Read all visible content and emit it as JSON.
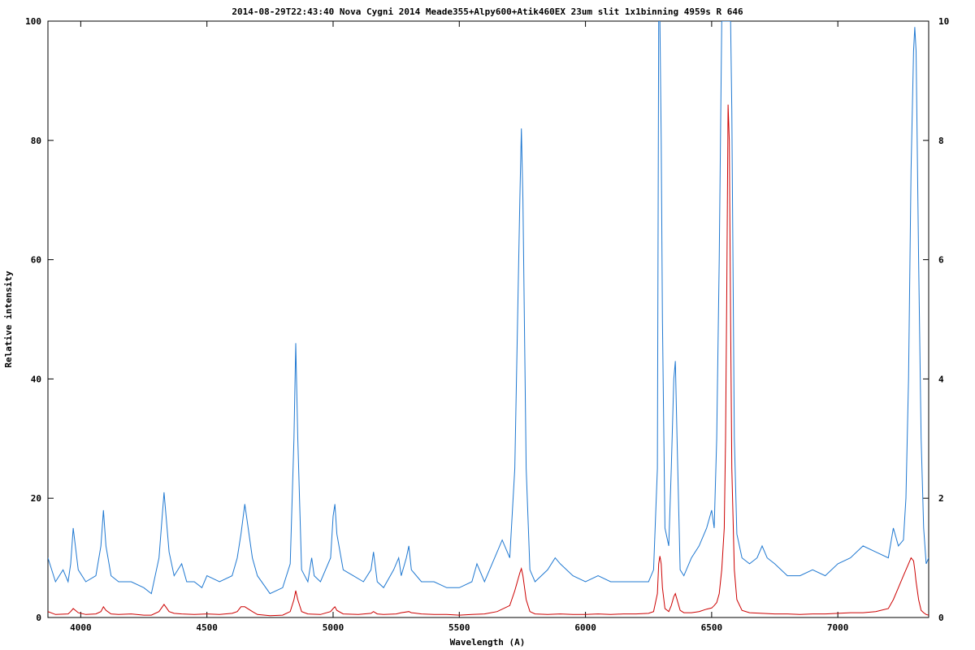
{
  "chart_data": {
    "type": "line",
    "title": "2014-08-29T22:43:40 Nova Cygni 2014 Meade355+Alpy600+Atik460EX 23um slit 1x1binning 4959s R 646",
    "xlabel": "Wavelength (A)",
    "ylabel": "Relative intensity",
    "xlim": [
      3870,
      7360
    ],
    "ylim": [
      0,
      100
    ],
    "y2lim": [
      0,
      10
    ],
    "x_ticks": [
      4000,
      4500,
      5000,
      5500,
      6000,
      6500,
      7000
    ],
    "y_ticks": [
      0,
      20,
      40,
      60,
      80,
      100
    ],
    "y2_ticks": [
      0,
      2,
      4,
      6,
      8,
      10
    ],
    "grid": false,
    "legend": "none",
    "series": [
      {
        "axis": "left",
        "color": "#1f78d1",
        "x": [
          3870,
          3900,
          3930,
          3950,
          3960,
          3970,
          3990,
          4020,
          4060,
          4080,
          4090,
          4100,
          4120,
          4150,
          4200,
          4250,
          4280,
          4310,
          4330,
          4350,
          4370,
          4400,
          4420,
          4450,
          4480,
          4500,
          4550,
          4600,
          4620,
          4635,
          4650,
          4680,
          4700,
          4750,
          4800,
          4830,
          4845,
          4852,
          4860,
          4875,
          4900,
          4915,
          4925,
          4950,
          4990,
          5000,
          5007,
          5015,
          5040,
          5080,
          5120,
          5150,
          5160,
          5175,
          5200,
          5240,
          5260,
          5270,
          5290,
          5300,
          5310,
          5350,
          5400,
          5450,
          5500,
          5550,
          5570,
          5600,
          5640,
          5670,
          5700,
          5720,
          5740,
          5746,
          5752,
          5765,
          5780,
          5800,
          5850,
          5880,
          5900,
          5950,
          6000,
          6050,
          6100,
          6150,
          6200,
          6250,
          6270,
          6285,
          6290,
          6295,
          6300,
          6305,
          6315,
          6330,
          6340,
          6350,
          6356,
          6363,
          6375,
          6390,
          6420,
          6450,
          6480,
          6500,
          6510,
          6520,
          6530,
          6540,
          6550,
          6560,
          6565,
          6570,
          6575,
          6580,
          6590,
          6600,
          6620,
          6650,
          6680,
          6700,
          6720,
          6750,
          6800,
          6850,
          6900,
          6950,
          7000,
          7050,
          7100,
          7150,
          7200,
          7220,
          7240,
          7260,
          7270,
          7280,
          7290,
          7300,
          7305,
          7310,
          7320,
          7330,
          7340,
          7350,
          7360
        ],
        "y": [
          10,
          6,
          8,
          6,
          9,
          15,
          8,
          6,
          7,
          12,
          18,
          12,
          7,
          6,
          6,
          5,
          4,
          10,
          21,
          11,
          7,
          9,
          6,
          6,
          5,
          7,
          6,
          7,
          10,
          14,
          19,
          10,
          7,
          4,
          5,
          9,
          30,
          46,
          30,
          8,
          6,
          10,
          7,
          6,
          10,
          17,
          19,
          14,
          8,
          7,
          6,
          8,
          11,
          6,
          5,
          8,
          10,
          7,
          10,
          12,
          8,
          6,
          6,
          5,
          5,
          6,
          9,
          6,
          10,
          13,
          10,
          25,
          70,
          82,
          70,
          25,
          8,
          6,
          8,
          10,
          9,
          7,
          6,
          7,
          6,
          6,
          6,
          6,
          8,
          25,
          100,
          100,
          80,
          50,
          15,
          12,
          25,
          40,
          43,
          30,
          8,
          7,
          10,
          12,
          15,
          18,
          15,
          30,
          60,
          100,
          100,
          100,
          100,
          100,
          100,
          85,
          30,
          14,
          10,
          9,
          10,
          12,
          10,
          9,
          7,
          7,
          8,
          7,
          9,
          10,
          12,
          11,
          10,
          15,
          12,
          13,
          20,
          40,
          75,
          95,
          99,
          95,
          60,
          30,
          15,
          9,
          10
        ]
      },
      {
        "axis": "right",
        "color": "#cc0000",
        "x": [
          3870,
          3900,
          3950,
          3960,
          3970,
          3990,
          4020,
          4060,
          4080,
          4090,
          4100,
          4120,
          4150,
          4200,
          4250,
          4280,
          4310,
          4330,
          4350,
          4370,
          4400,
          4450,
          4500,
          4550,
          4600,
          4620,
          4635,
          4650,
          4680,
          4700,
          4750,
          4800,
          4830,
          4845,
          4852,
          4860,
          4875,
          4900,
          4950,
          4990,
          5000,
          5007,
          5015,
          5040,
          5100,
          5150,
          5160,
          5175,
          5200,
          5250,
          5270,
          5300,
          5310,
          5350,
          5400,
          5450,
          5500,
          5550,
          5600,
          5650,
          5700,
          5720,
          5740,
          5746,
          5752,
          5765,
          5780,
          5800,
          5850,
          5900,
          5950,
          6000,
          6050,
          6100,
          6150,
          6200,
          6250,
          6270,
          6285,
          6290,
          6295,
          6300,
          6305,
          6315,
          6330,
          6340,
          6350,
          6356,
          6363,
          6375,
          6390,
          6420,
          6450,
          6480,
          6500,
          6510,
          6520,
          6530,
          6540,
          6550,
          6555,
          6560,
          6565,
          6570,
          6575,
          6580,
          6590,
          6600,
          6620,
          6650,
          6700,
          6750,
          6800,
          6850,
          6900,
          6950,
          7000,
          7050,
          7100,
          7150,
          7200,
          7220,
          7240,
          7260,
          7280,
          7290,
          7300,
          7305,
          7310,
          7320,
          7330,
          7340,
          7350,
          7360
        ],
        "y": [
          0.1,
          0.05,
          0.06,
          0.1,
          0.15,
          0.08,
          0.05,
          0.06,
          0.1,
          0.18,
          0.12,
          0.06,
          0.05,
          0.06,
          0.04,
          0.04,
          0.1,
          0.22,
          0.1,
          0.07,
          0.06,
          0.05,
          0.06,
          0.05,
          0.07,
          0.1,
          0.18,
          0.18,
          0.1,
          0.05,
          0.03,
          0.04,
          0.1,
          0.3,
          0.45,
          0.3,
          0.1,
          0.06,
          0.05,
          0.1,
          0.15,
          0.18,
          0.12,
          0.06,
          0.05,
          0.07,
          0.1,
          0.06,
          0.05,
          0.06,
          0.08,
          0.1,
          0.08,
          0.06,
          0.05,
          0.05,
          0.04,
          0.05,
          0.06,
          0.1,
          0.2,
          0.45,
          0.75,
          0.82,
          0.7,
          0.3,
          0.1,
          0.06,
          0.05,
          0.06,
          0.05,
          0.05,
          0.06,
          0.05,
          0.06,
          0.06,
          0.07,
          0.1,
          0.4,
          0.9,
          1.03,
          0.9,
          0.5,
          0.15,
          0.1,
          0.2,
          0.35,
          0.4,
          0.3,
          0.12,
          0.08,
          0.08,
          0.1,
          0.14,
          0.16,
          0.2,
          0.25,
          0.4,
          0.8,
          1.5,
          3.0,
          5.5,
          8.6,
          8.0,
          5.0,
          2.5,
          0.8,
          0.3,
          0.12,
          0.08,
          0.07,
          0.06,
          0.06,
          0.05,
          0.06,
          0.06,
          0.07,
          0.08,
          0.08,
          0.1,
          0.15,
          0.3,
          0.5,
          0.7,
          0.9,
          1.0,
          0.95,
          0.8,
          0.6,
          0.3,
          0.12,
          0.08,
          0.05,
          0.04
        ]
      }
    ]
  }
}
